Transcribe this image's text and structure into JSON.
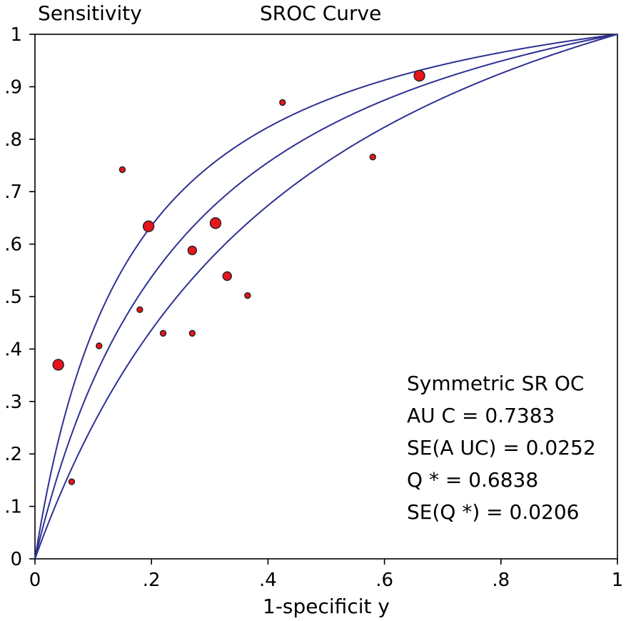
{
  "chart_data": {
    "type": "scatter",
    "title": "SROC Curve",
    "ylabel": "Sensitivity",
    "xlabel": "1-specificit y",
    "xlim": [
      0,
      1
    ],
    "ylim": [
      0,
      1
    ],
    "x_ticks": [
      "0",
      ".2",
      ".4",
      ".6",
      ".8",
      "1"
    ],
    "y_ticks": [
      "0",
      ".1",
      ".2",
      ".3",
      ".4",
      ".5",
      ".6",
      ".7",
      ".8",
      ".9",
      "1"
    ],
    "series": [
      {
        "points": [
          {
            "x": 0.04,
            "y": 0.37,
            "size": "large"
          },
          {
            "x": 0.063,
            "y": 0.147,
            "size": "small"
          },
          {
            "x": 0.11,
            "y": 0.406,
            "size": "small"
          },
          {
            "x": 0.15,
            "y": 0.742,
            "size": "small"
          },
          {
            "x": 0.18,
            "y": 0.475,
            "size": "small"
          },
          {
            "x": 0.195,
            "y": 0.634,
            "size": "large"
          },
          {
            "x": 0.22,
            "y": 0.43,
            "size": "small"
          },
          {
            "x": 0.27,
            "y": 0.43,
            "size": "small"
          },
          {
            "x": 0.27,
            "y": 0.588,
            "size": "medium"
          },
          {
            "x": 0.31,
            "y": 0.64,
            "size": "large"
          },
          {
            "x": 0.33,
            "y": 0.539,
            "size": "medium"
          },
          {
            "x": 0.365,
            "y": 0.502,
            "size": "small"
          },
          {
            "x": 0.425,
            "y": 0.87,
            "size": "small"
          },
          {
            "x": 0.58,
            "y": 0.766,
            "size": "small"
          },
          {
            "x": 0.66,
            "y": 0.921,
            "size": "large"
          }
        ],
        "color": "#e8141c"
      }
    ],
    "curves": [
      {
        "name": "upper",
        "color": "#2e3192"
      },
      {
        "name": "sroc",
        "color": "#2e3192"
      },
      {
        "name": "lower",
        "color": "#2e3192"
      }
    ],
    "annotation": {
      "heading": "Symmetric SR OC",
      "auc": "AU C = 0.7383",
      "se_auc": "SE(A UC)  = 0.0252",
      "q": "Q * = 0.6838",
      "se_q": "SE(Q *) = 0.0206"
    }
  }
}
